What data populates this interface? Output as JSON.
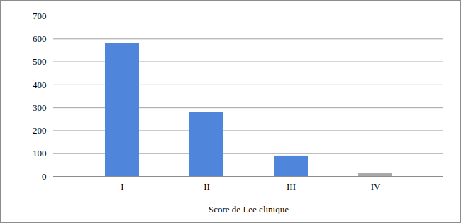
{
  "chart_data": {
    "type": "bar",
    "x_label": "Score de Lee clinique",
    "categories": [
      "I",
      "II",
      "III",
      "IV"
    ],
    "values": [
      580,
      280,
      90,
      15
    ],
    "colors": [
      "#4f86dc",
      "#4f86dc",
      "#4f86dc",
      "#a9a9a9"
    ],
    "ylim": [
      0,
      700
    ],
    "yticks": [
      0,
      100,
      200,
      300,
      400,
      500,
      600,
      700
    ],
    "grid": true
  }
}
